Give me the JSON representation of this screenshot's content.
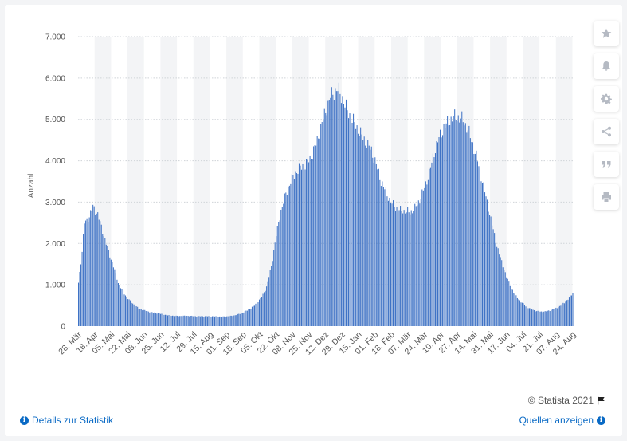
{
  "chart_data": {
    "type": "bar",
    "title": "",
    "ylabel": "Anzahl",
    "xlabel": "",
    "ylim": [
      0,
      7000
    ],
    "yticks": [
      0,
      1000,
      2000,
      3000,
      4000,
      5000,
      6000,
      7000
    ],
    "ytick_labels": [
      "0",
      "1.000",
      "2.000",
      "3.000",
      "4.000",
      "5.000",
      "6.000",
      "7.000"
    ],
    "grid": true,
    "bar_color": "#3e72c5",
    "xtick_labels": [
      "28. Mär",
      "18. Apr",
      "05. Mai",
      "22. Mai",
      "08. Jun",
      "25. Jun",
      "12. Jul",
      "29. Jul",
      "15. Aug",
      "01. Sep",
      "18. Sep",
      "05. Okt",
      "22. Okt",
      "08. Nov",
      "25. Nov",
      "12. Dez",
      "29. Dez",
      "15. Jan",
      "01. Feb",
      "18. Feb",
      "07. Mär",
      "24. Mär",
      "10. Apr",
      "27. Apr",
      "14. Mai",
      "31. Mai",
      "17. Jun",
      "04. Jul",
      "21. Jul",
      "07. Aug",
      "24. Aug"
    ],
    "anchors": [
      [
        0,
        1050
      ],
      [
        3,
        1800
      ],
      [
        5,
        2500
      ],
      [
        9,
        2650
      ],
      [
        12,
        2900
      ],
      [
        16,
        2700
      ],
      [
        20,
        2300
      ],
      [
        25,
        1800
      ],
      [
        29,
        1450
      ],
      [
        33,
        1050
      ],
      [
        38,
        780
      ],
      [
        44,
        570
      ],
      [
        50,
        430
      ],
      [
        58,
        350
      ],
      [
        66,
        310
      ],
      [
        74,
        265
      ],
      [
        82,
        245
      ],
      [
        90,
        250
      ],
      [
        98,
        240
      ],
      [
        110,
        240
      ],
      [
        120,
        230
      ],
      [
        128,
        250
      ],
      [
        134,
        300
      ],
      [
        140,
        380
      ],
      [
        146,
        500
      ],
      [
        152,
        700
      ],
      [
        156,
        950
      ],
      [
        160,
        1450
      ],
      [
        164,
        2200
      ],
      [
        168,
        2800
      ],
      [
        172,
        3200
      ],
      [
        176,
        3500
      ],
      [
        181,
        3750
      ],
      [
        185,
        3850
      ],
      [
        189,
        3920
      ],
      [
        193,
        4100
      ],
      [
        197,
        4400
      ],
      [
        201,
        4800
      ],
      [
        205,
        5200
      ],
      [
        209,
        5550
      ],
      [
        213,
        5700
      ],
      [
        215,
        5730
      ],
      [
        219,
        5500
      ],
      [
        223,
        5200
      ],
      [
        227,
        5000
      ],
      [
        231,
        4800
      ],
      [
        235,
        4600
      ],
      [
        239,
        4420
      ],
      [
        243,
        4250
      ],
      [
        247,
        3900
      ],
      [
        251,
        3500
      ],
      [
        255,
        3250
      ],
      [
        259,
        3000
      ],
      [
        263,
        2870
      ],
      [
        267,
        2800
      ],
      [
        271,
        2780
      ],
      [
        275,
        2750
      ],
      [
        279,
        2850
      ],
      [
        283,
        3050
      ],
      [
        287,
        3350
      ],
      [
        291,
        3700
      ],
      [
        295,
        4200
      ],
      [
        299,
        4550
      ],
      [
        303,
        4800
      ],
      [
        307,
        4950
      ],
      [
        311,
        5050
      ],
      [
        315,
        5050
      ],
      [
        319,
        4980
      ],
      [
        323,
        4750
      ],
      [
        327,
        4400
      ],
      [
        331,
        4000
      ],
      [
        335,
        3500
      ],
      [
        339,
        3000
      ],
      [
        343,
        2450
      ],
      [
        347,
        1950
      ],
      [
        351,
        1550
      ],
      [
        355,
        1200
      ],
      [
        359,
        920
      ],
      [
        363,
        720
      ],
      [
        367,
        590
      ],
      [
        371,
        480
      ],
      [
        375,
        420
      ],
      [
        379,
        370
      ],
      [
        383,
        350
      ],
      [
        387,
        355
      ],
      [
        391,
        380
      ],
      [
        395,
        420
      ],
      [
        399,
        480
      ],
      [
        403,
        570
      ],
      [
        407,
        680
      ],
      [
        410,
        800
      ]
    ]
  },
  "toolbar": {
    "icons": [
      "star-icon",
      "bell-icon",
      "gear-icon",
      "share-icon",
      "quote-icon",
      "print-icon"
    ]
  },
  "footer": {
    "copyright": "© Statista 2021",
    "details_link": "Details zur Statistik",
    "sources_link": "Quellen anzeigen"
  }
}
